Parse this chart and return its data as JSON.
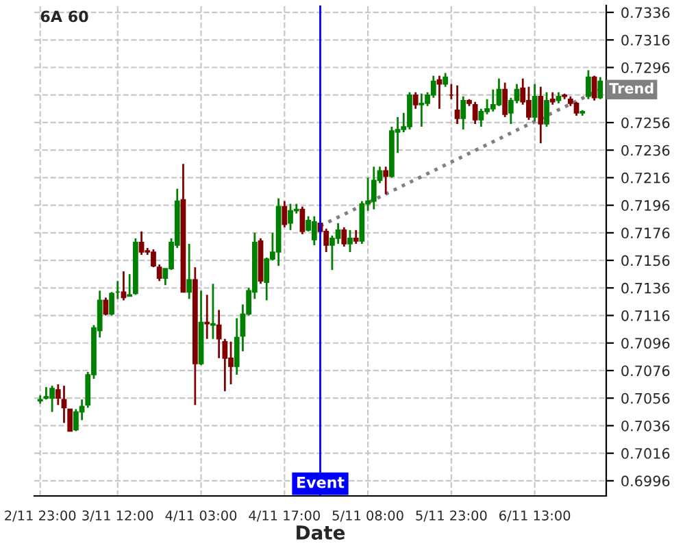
{
  "chart_data": {
    "type": "candlestick",
    "title": "6A 60",
    "xlabel": "Date",
    "grid": true,
    "legend": false,
    "categories": [
      "2/11 23:00",
      null,
      null,
      null,
      null,
      null,
      null,
      null,
      null,
      null,
      null,
      null,
      null,
      "3/11 12:00",
      null,
      null,
      null,
      null,
      null,
      null,
      null,
      null,
      null,
      null,
      null,
      null,
      null,
      "4/11 03:00",
      null,
      null,
      null,
      null,
      null,
      null,
      null,
      null,
      null,
      null,
      null,
      null,
      null,
      "4/11 17:00",
      null,
      null,
      null,
      null,
      null,
      null,
      null,
      null,
      null,
      null,
      null,
      null,
      null,
      "5/11 08:00",
      null,
      null,
      null,
      null,
      null,
      null,
      null,
      null,
      null,
      null,
      null,
      null,
      null,
      "5/11 23:00",
      null,
      null,
      null,
      null,
      null,
      null,
      null,
      null,
      null,
      null,
      null,
      null,
      null,
      "6/11 13:00",
      null,
      null,
      null,
      null,
      null,
      null,
      null,
      null,
      null,
      null,
      null
    ],
    "ylim": [
      0.6985,
      0.7341
    ],
    "yticks": [
      0.6996,
      0.7016,
      0.7036,
      0.7056,
      0.7076,
      0.7096,
      0.7116,
      0.7136,
      0.7156,
      0.7176,
      0.7196,
      0.7216,
      0.7236,
      0.7256,
      {
        "value": 0.7276,
        "label": null
      },
      0.7296,
      0.7316,
      0.7336
    ],
    "ref_lines": [
      {
        "axis": "x",
        "label": "Event",
        "color": "#0000ff"
      }
    ],
    "series": [
      {
        "ohlc": [
          [
            0.7054,
            0.7058,
            0.7052,
            0.7055
          ],
          [
            0.7056,
            0.7064,
            0.7055,
            0.7057
          ],
          [
            0.7056,
            0.7065,
            0.7046,
            0.7063
          ],
          [
            0.7062,
            0.7066,
            0.7051,
            0.7056
          ],
          [
            0.7055,
            0.7065,
            0.7038,
            0.7049
          ],
          [
            0.7048,
            0.7048,
            0.7032,
            0.7032
          ],
          [
            0.7033,
            0.7048,
            0.7032,
            0.7046
          ],
          [
            0.7046,
            0.7055,
            0.704,
            0.705
          ],
          [
            0.7051,
            0.7075,
            0.7049,
            0.7073
          ],
          [
            0.7073,
            0.7109,
            0.707,
            0.7107
          ],
          [
            0.7105,
            0.7134,
            0.71,
            0.7127
          ],
          [
            0.7127,
            0.7129,
            0.7116,
            0.7117
          ],
          [
            0.7117,
            0.7133,
            0.7116,
            0.7132
          ],
          [
            0.7133,
            0.7141,
            0.7128,
            0.7133
          ],
          [
            0.7133,
            0.7148,
            0.7127,
            0.7129
          ],
          [
            0.713,
            0.7146,
            0.713,
            0.7131
          ],
          [
            0.7132,
            0.7172,
            0.7131,
            0.7169
          ],
          [
            0.7169,
            0.7177,
            0.716,
            0.7162
          ],
          [
            0.7163,
            0.7165,
            0.716,
            0.7162
          ],
          [
            0.7162,
            0.7164,
            0.7151,
            0.7152
          ],
          [
            0.7151,
            0.7153,
            0.7141,
            0.7143
          ],
          [
            0.7143,
            0.715,
            0.7138,
            0.715
          ],
          [
            0.715,
            0.7172,
            0.7149,
            0.7169
          ],
          [
            0.7167,
            0.7208,
            0.7165,
            0.7199
          ],
          [
            0.72,
            0.7226,
            0.7133,
            0.7133
          ],
          [
            0.7133,
            0.7168,
            0.7128,
            0.7142
          ],
          [
            0.7142,
            0.7151,
            0.7051,
            0.7081
          ],
          [
            0.7081,
            0.7134,
            0.708,
            0.7111
          ],
          [
            0.7111,
            0.7131,
            0.7099,
            0.711
          ],
          [
            0.7109,
            0.7139,
            0.7099,
            0.711
          ],
          [
            0.7109,
            0.712,
            0.7085,
            0.7099
          ],
          [
            0.7097,
            0.7099,
            0.7061,
            0.7085
          ],
          [
            0.7085,
            0.7097,
            0.7066,
            0.7079
          ],
          [
            0.7079,
            0.7114,
            0.7073,
            0.71
          ],
          [
            0.7101,
            0.7124,
            0.709,
            0.7117
          ],
          [
            0.7117,
            0.7136,
            0.7116,
            0.7134
          ],
          [
            0.7133,
            0.7176,
            0.7128,
            0.7169
          ],
          [
            0.717,
            0.7172,
            0.7139,
            0.7141
          ],
          [
            0.714,
            0.7158,
            0.7127,
            0.7157
          ],
          [
            0.7157,
            0.7176,
            0.7156,
            0.7162
          ],
          [
            0.7162,
            0.7201,
            0.7152,
            0.7195
          ],
          [
            0.7195,
            0.7199,
            0.718,
            0.7182
          ],
          [
            0.7183,
            0.7197,
            0.7178,
            0.7192
          ],
          [
            0.7192,
            0.7197,
            0.719,
            0.7193
          ],
          [
            0.7193,
            0.7195,
            0.7175,
            0.7177
          ],
          [
            0.7178,
            0.7188,
            0.7177,
            0.7185
          ],
          [
            0.7171,
            0.7188,
            0.7167,
            0.7184
          ],
          [
            0.7183,
            0.7185,
            0.7175,
            0.7177
          ],
          [
            0.7177,
            0.7179,
            0.7162,
            0.7167
          ],
          [
            0.7167,
            0.7174,
            0.7149,
            0.7172
          ],
          [
            0.7172,
            0.7183,
            0.7168,
            0.7178
          ],
          [
            0.7178,
            0.718,
            0.7166,
            0.7168
          ],
          [
            0.7168,
            0.7178,
            0.7162,
            0.7172
          ],
          [
            0.7172,
            0.7178,
            0.7168,
            0.717
          ],
          [
            0.717,
            0.7199,
            0.7168,
            0.7197
          ],
          [
            0.7197,
            0.7216,
            0.7192,
            0.7199
          ],
          [
            0.7199,
            0.7224,
            0.7193,
            0.7214
          ],
          [
            0.7214,
            0.7224,
            0.7212,
            0.7221
          ],
          [
            0.7221,
            0.7224,
            0.7204,
            0.7217
          ],
          [
            0.7217,
            0.7253,
            0.7216,
            0.725
          ],
          [
            0.7249,
            0.726,
            0.7234,
            0.7251
          ],
          [
            0.7251,
            0.7263,
            0.7249,
            0.7253
          ],
          [
            0.7253,
            0.7278,
            0.7251,
            0.7276
          ],
          [
            0.7276,
            0.7278,
            0.7266,
            0.7269
          ],
          [
            0.7269,
            0.7277,
            0.7253,
            0.727
          ],
          [
            0.727,
            0.7278,
            0.7268,
            0.7276
          ],
          [
            0.7276,
            0.729,
            0.7274,
            0.7286
          ],
          [
            0.7287,
            0.729,
            0.7266,
            0.7284
          ],
          [
            0.7284,
            0.7292,
            0.7282,
            0.7289
          ],
          [
            0.7276,
            0.7284,
            0.7273,
            0.7276
          ],
          [
            0.7265,
            0.7283,
            0.7255,
            0.7259
          ],
          [
            0.7259,
            0.7275,
            0.7251,
            0.7272
          ],
          [
            0.7272,
            0.7273,
            0.7268,
            0.727
          ],
          [
            0.7269,
            0.7271,
            0.7255,
            0.7258
          ],
          [
            0.7258,
            0.7266,
            0.7253,
            0.7264
          ],
          [
            0.7264,
            0.7273,
            0.7262,
            0.7266
          ],
          [
            0.7266,
            0.728,
            0.7264,
            0.7269
          ],
          [
            0.7269,
            0.7288,
            0.7268,
            0.728
          ],
          [
            0.728,
            0.7285,
            0.726,
            0.7262
          ],
          [
            0.7263,
            0.7274,
            0.7255,
            0.7272
          ],
          [
            0.7272,
            0.7284,
            0.727,
            0.728
          ],
          [
            0.7281,
            0.7288,
            0.7269,
            0.7271
          ],
          [
            0.7272,
            0.7282,
            0.7258,
            0.726
          ],
          [
            0.726,
            0.7284,
            0.7257,
            0.7275
          ],
          [
            0.7275,
            0.7282,
            0.7241,
            0.7255
          ],
          [
            0.7255,
            0.7278,
            0.7253,
            0.7272
          ],
          [
            0.7273,
            0.7278,
            0.7269,
            0.7271
          ],
          [
            0.7272,
            0.7278,
            0.727,
            0.7275
          ],
          [
            0.7276,
            0.7277,
            0.7273,
            0.7275
          ],
          [
            0.7273,
            0.7275,
            0.7268,
            0.727
          ],
          [
            0.727,
            0.7271,
            0.7261,
            0.7263
          ],
          [
            0.7263,
            0.7265,
            0.7261,
            0.7264
          ],
          [
            0.7275,
            0.7294,
            0.7273,
            0.7289
          ],
          [
            0.7289,
            0.729,
            0.7272,
            0.7274
          ],
          [
            0.7274,
            0.7289,
            0.7273,
            0.7286
          ]
        ],
        "colors": [
          "#008000",
          "#008000",
          "#008000",
          "#800000",
          "#800000",
          "#800000",
          "#008000",
          "#008000",
          "#008000",
          "#008000",
          "#008000",
          "#800000",
          "#008000",
          "#008000",
          "#800000",
          "#008000",
          "#008000",
          "#800000",
          "#800000",
          "#800000",
          "#800000",
          "#008000",
          "#008000",
          "#008000",
          "#800000",
          "#008000",
          "#800000",
          "#008000",
          "#800000",
          "#008000",
          "#800000",
          "#800000",
          "#800000",
          "#008000",
          "#008000",
          "#008000",
          "#008000",
          "#800000",
          "#008000",
          "#008000",
          "#008000",
          "#800000",
          "#008000",
          "#008000",
          "#800000",
          "#008000",
          "#008000",
          "#800000",
          "#800000",
          "#008000",
          "#008000",
          "#800000",
          "#008000",
          "#800000",
          "#008000",
          "#008000",
          "#008000",
          "#008000",
          "#800000",
          "#008000",
          "#008000",
          "#008000",
          "#008000",
          "#800000",
          "#008000",
          "#008000",
          "#008000",
          "#800000",
          "#008000",
          "#800000",
          "#800000",
          "#008000",
          "#800000",
          "#800000",
          "#008000",
          "#008000",
          "#008000",
          "#008000",
          "#800000",
          "#008000",
          "#008000",
          "#800000",
          "#800000",
          "#008000",
          "#800000",
          "#008000",
          "#800000",
          "#008000",
          "#800000",
          "#800000",
          "#800000",
          "#008000",
          "#008000",
          "#800000",
          "#008000"
        ]
      },
      {
        "type": "line",
        "name": "Trend",
        "color": "#808080",
        "line_style": "dotted",
        "values": [
          null,
          null,
          null,
          null,
          null,
          null,
          null,
          null,
          null,
          null,
          null,
          null,
          null,
          null,
          null,
          null,
          null,
          null,
          null,
          null,
          null,
          null,
          null,
          null,
          null,
          null,
          null,
          null,
          null,
          null,
          null,
          null,
          null,
          null,
          null,
          null,
          null,
          null,
          null,
          null,
          null,
          null,
          null,
          null,
          null,
          null,
          null,
          0.7181,
          null,
          null,
          null,
          null,
          null,
          null,
          null,
          null,
          null,
          null,
          null,
          null,
          null,
          null,
          null,
          null,
          null,
          null,
          null,
          null,
          null,
          null,
          null,
          null,
          null,
          null,
          null,
          null,
          null,
          null,
          null,
          null,
          null,
          null,
          null,
          null,
          null,
          null,
          null,
          null,
          null,
          null,
          null,
          null,
          null,
          null,
          0.728
        ]
      }
    ]
  }
}
